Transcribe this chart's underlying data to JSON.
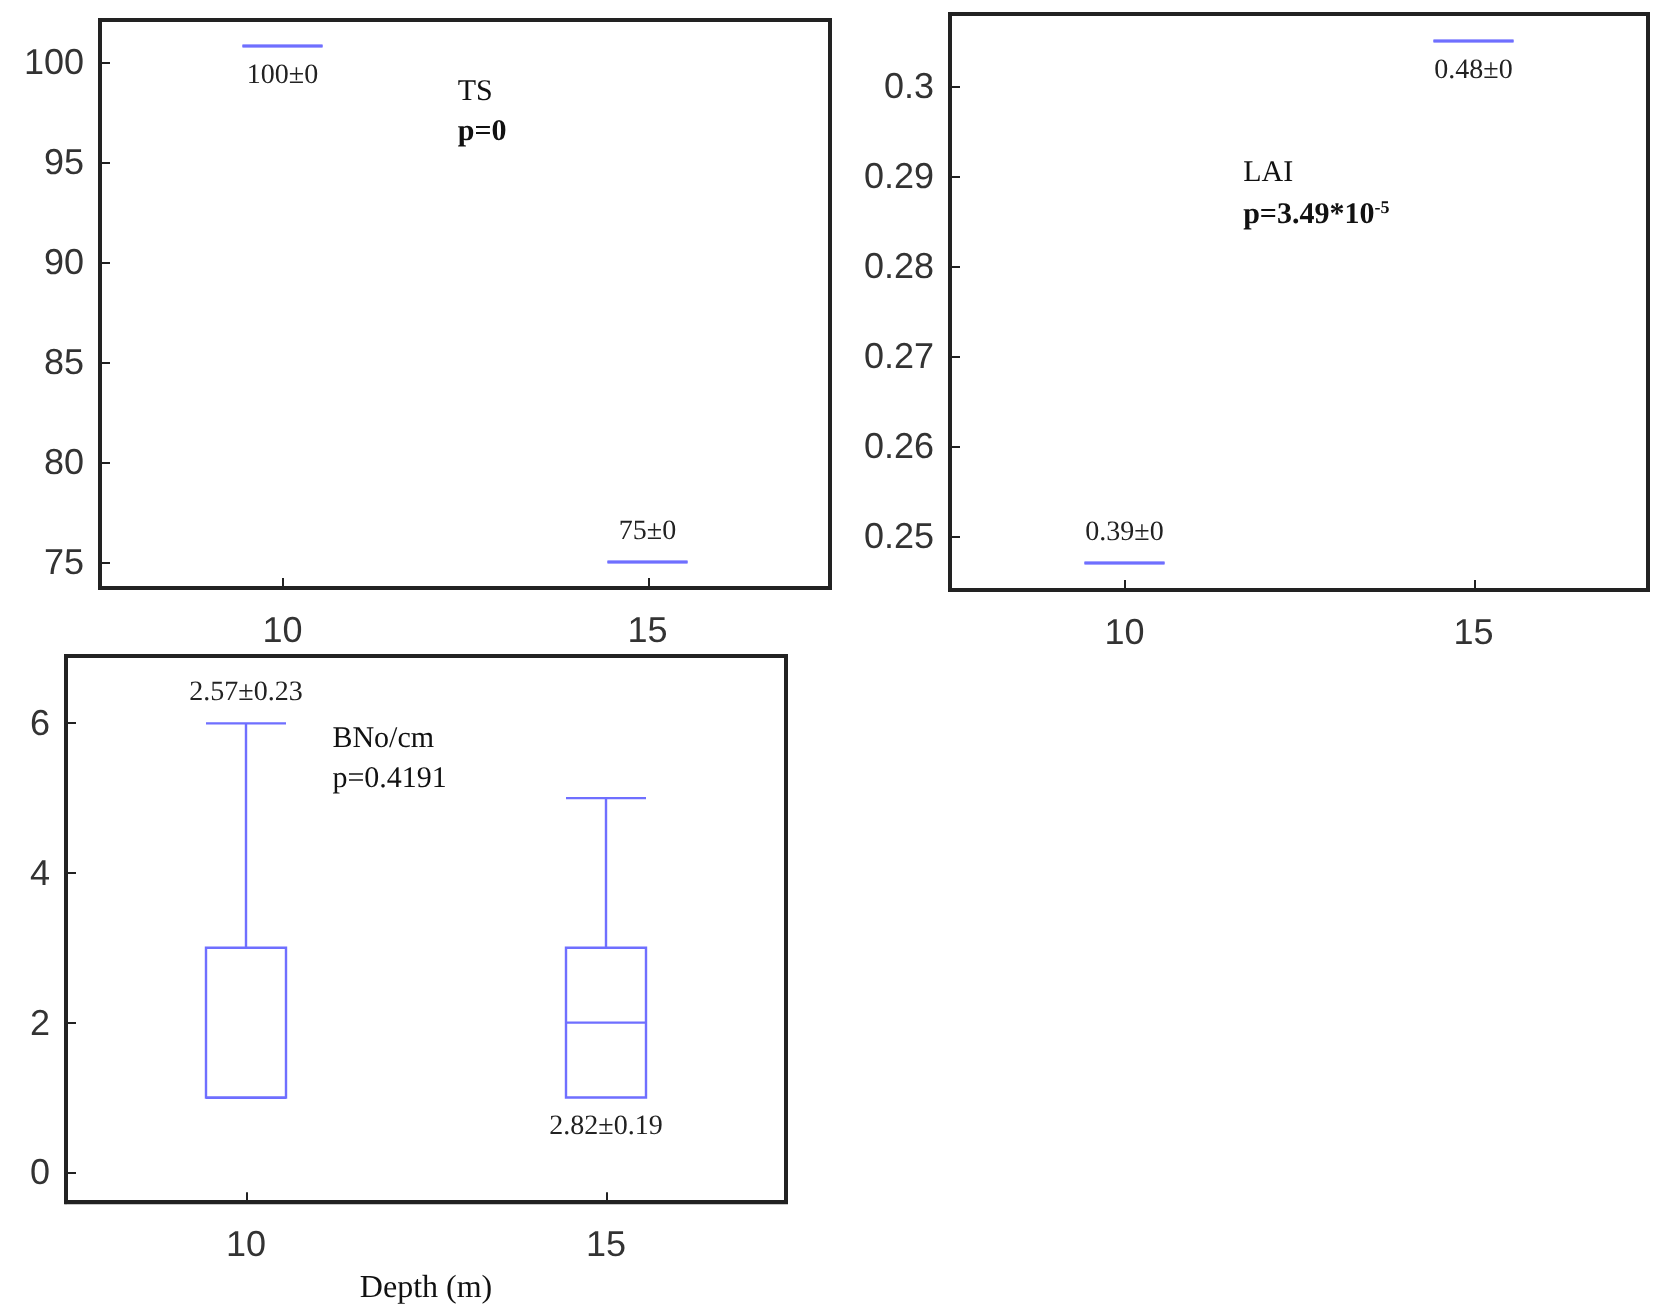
{
  "chart_data": [
    {
      "type": "box",
      "categories": [
        "10",
        "15"
      ],
      "ylim": [
        73.7,
        102.1
      ],
      "yticks": [
        75,
        80,
        85,
        90,
        95,
        100
      ],
      "grid": false,
      "series": [
        {
          "color": "#6f6fff",
          "boxes": [
            {
              "low": 100.8,
              "q1": 100.8,
              "median": 100.8,
              "q3": 100.8,
              "high": 100.8
            },
            {
              "low": 75,
              "q1": 75,
              "median": 75,
              "q3": 75,
              "high": 75
            }
          ]
        }
      ],
      "annotations": [
        "TS",
        "p=0",
        {
          "text": "100±0",
          "x": "10",
          "y": 100.8
        },
        {
          "text": "75±0",
          "x": "15",
          "y": 75
        }
      ]
    },
    {
      "type": "box",
      "categories": [
        "10",
        "15"
      ],
      "ylim": [
        0.244,
        0.308
      ],
      "yticks": [
        0.25,
        0.26,
        0.27,
        0.28,
        0.29,
        0.3
      ],
      "grid": false,
      "series": [
        {
          "color": "#6f6fff",
          "boxes": [
            {
              "low": 0.247,
              "q1": 0.247,
              "median": 0.247,
              "q3": 0.247,
              "high": 0.247
            },
            {
              "low": 0.305,
              "q1": 0.305,
              "median": 0.305,
              "q3": 0.305,
              "high": 0.305
            }
          ]
        }
      ],
      "annotations": [
        "LAI",
        "p=3.49*10$^{-5}$",
        {
          "text": "0.39±0",
          "x": "10",
          "y": 0.247
        },
        {
          "text": "0.48±0",
          "x": "15",
          "y": 0.305
        }
      ]
    },
    {
      "type": "box",
      "categories": [
        "10",
        "15"
      ],
      "xlabel": "Depth (m)",
      "ylim": [
        -0.4,
        6.9
      ],
      "yticks": [
        0,
        2,
        4,
        6
      ],
      "grid": false,
      "series": [
        {
          "color": "#6f6fff",
          "boxes": [
            {
              "low": 1,
              "q1": 1,
              "median": 1,
              "q3": 3,
              "high": 6
            },
            {
              "low": 1,
              "q1": 1,
              "median": 2,
              "q3": 3,
              "high": 5
            }
          ]
        }
      ],
      "annotations": [
        "BNo/cm",
        "p=0.4191",
        {
          "text": "2.57±0.23",
          "x": "10",
          "y": 6
        },
        {
          "text": "2.82±0.19",
          "x": "15",
          "y": 1
        }
      ]
    }
  ]
}
